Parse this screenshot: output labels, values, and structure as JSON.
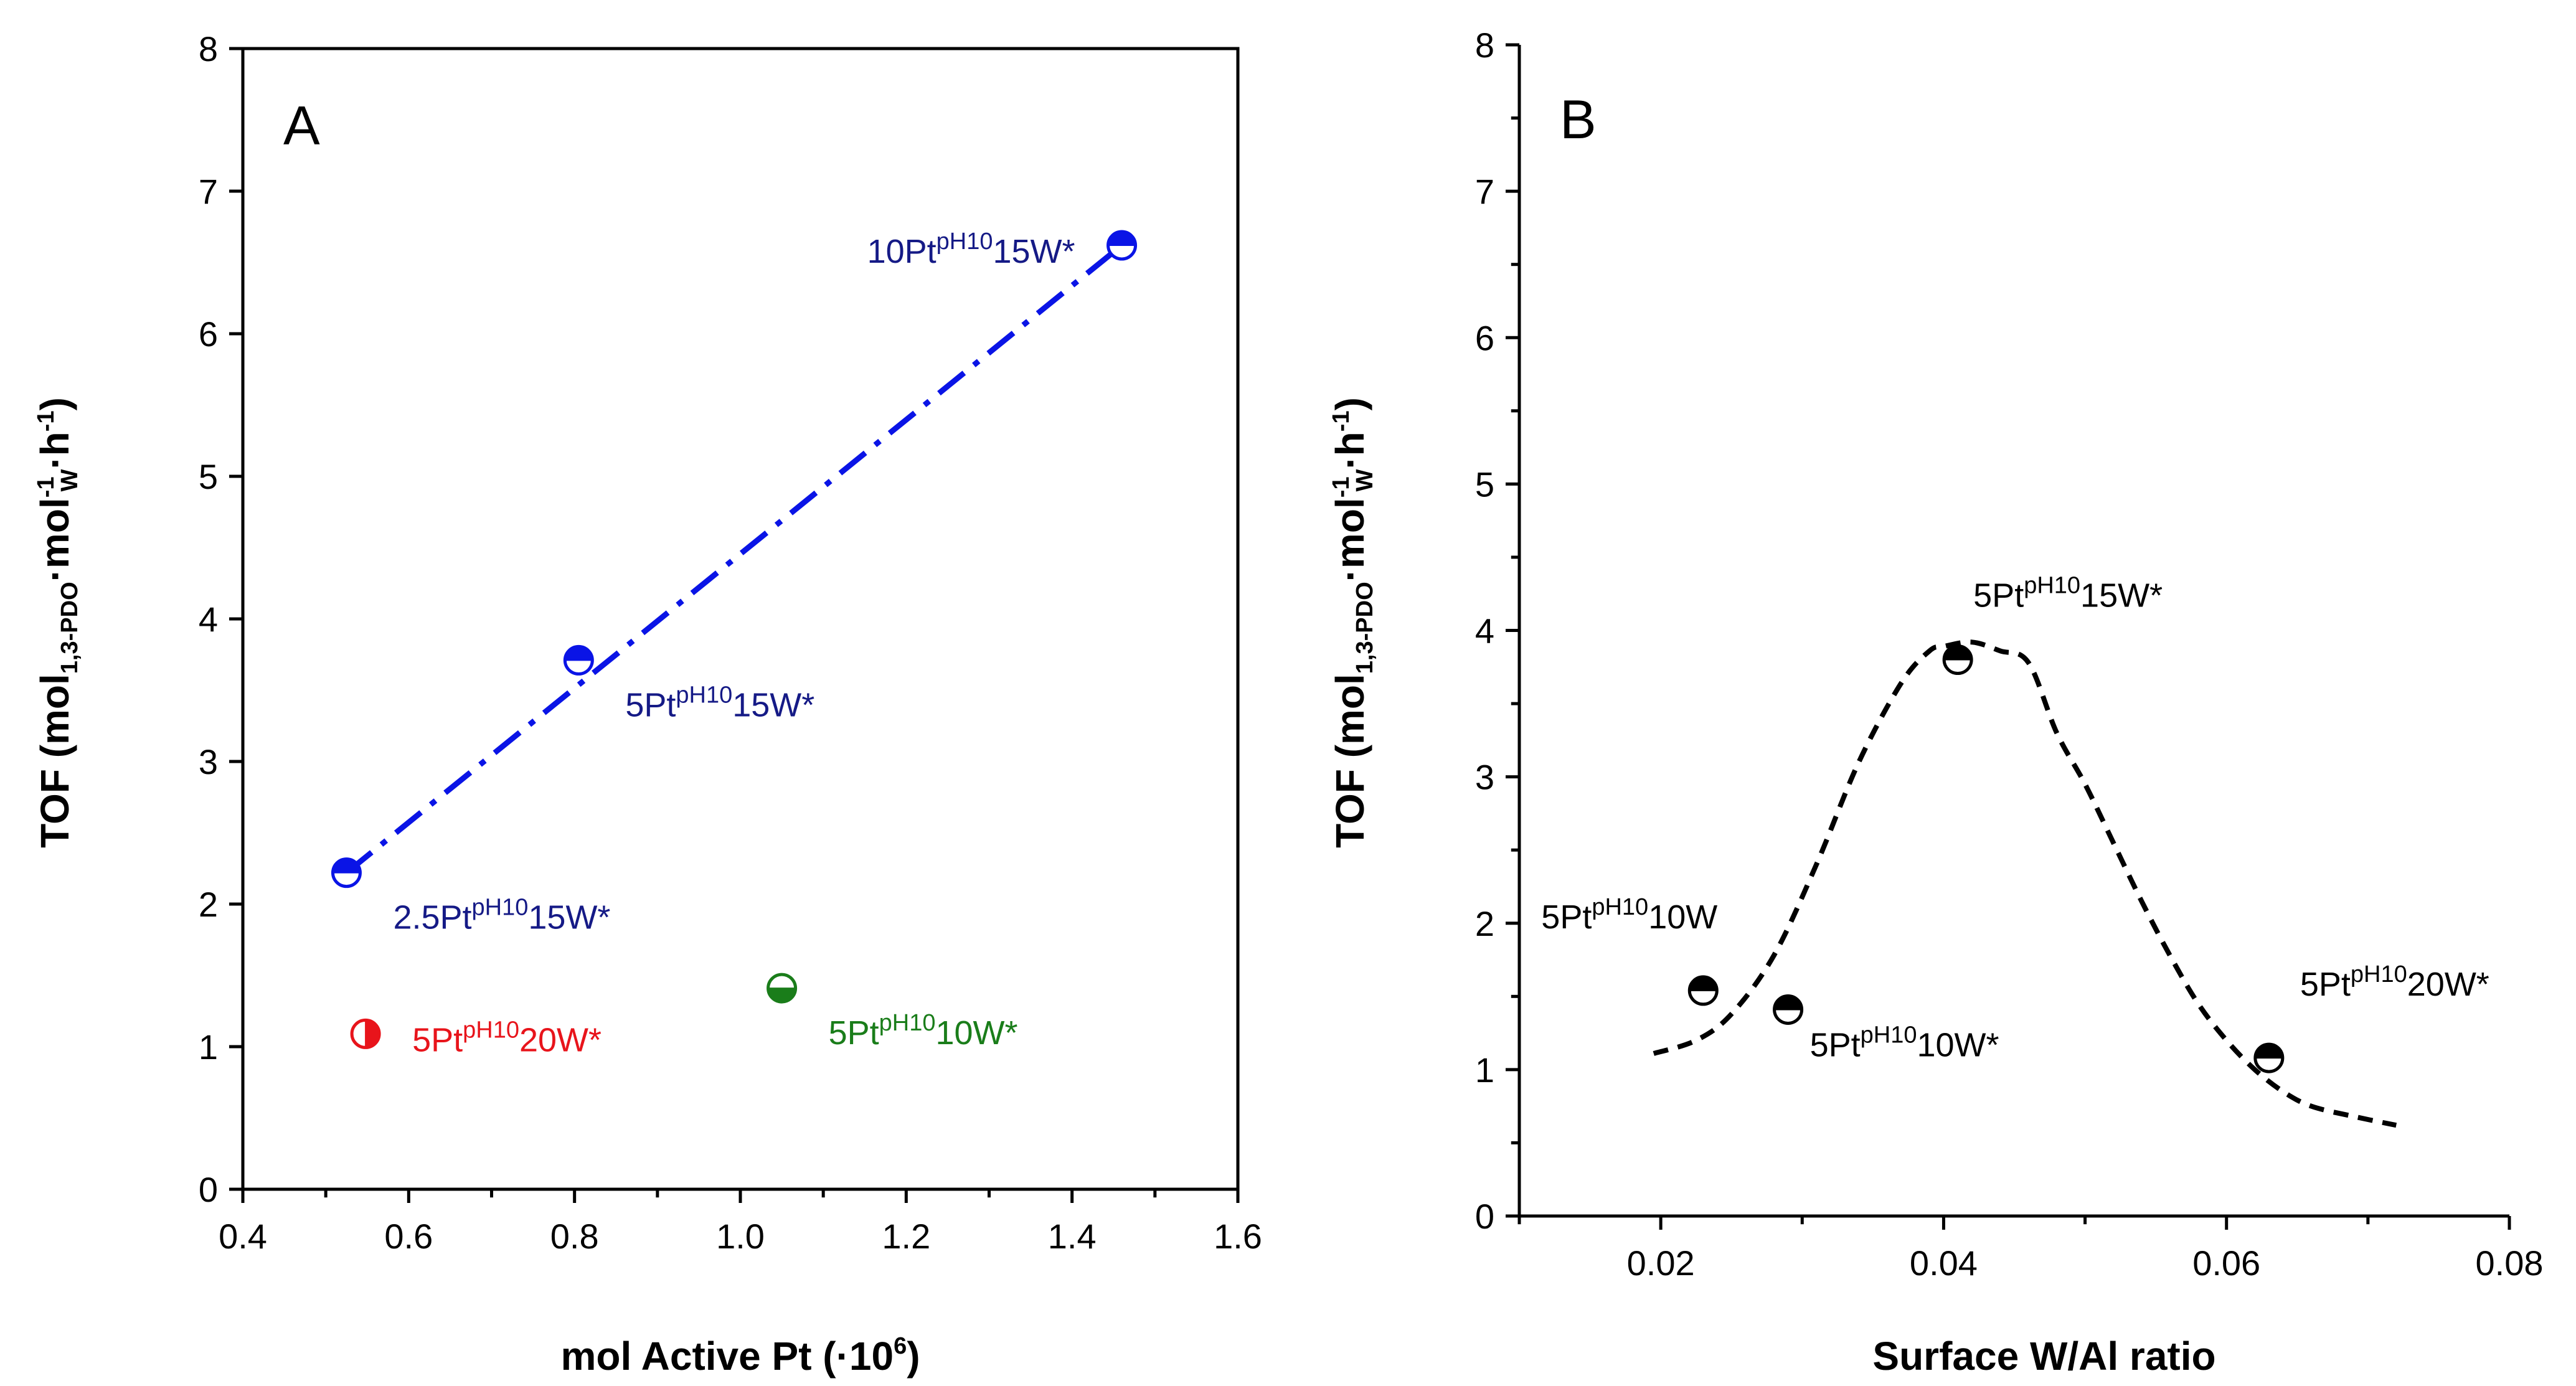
{
  "chart_data": [
    {
      "panel": "A",
      "type": "scatter",
      "xlabel": "mol Active Pt (·10",
      "xlabel_sup": "6",
      "xlabel_end": ")",
      "ylabel": "TOF (mol1,3-PDO·molW-1·h-1)",
      "xlim": [
        0.4,
        1.6
      ],
      "ylim": [
        0,
        8
      ],
      "xticks": [
        "0.4",
        "0.6",
        "0.8",
        "1.0",
        "1.2",
        "1.4",
        "1.6"
      ],
      "yticks": [
        "0",
        "1",
        "2",
        "3",
        "4",
        "5",
        "6",
        "7",
        "8"
      ],
      "fit_line": {
        "style": "dash-dot",
        "color": "#0a14e6",
        "x": [
          0.525,
          1.46
        ],
        "y": [
          2.22,
          6.62
        ]
      },
      "series": [
        {
          "name": "2.5PtpH1015W*",
          "prefix": "2.5Pt",
          "sup": "pH10",
          "suffix": "15W*",
          "x": 0.525,
          "y": 2.22,
          "color": "#0a14e6",
          "label_color": "#151a86",
          "fill": "top",
          "label_pos": "below-right"
        },
        {
          "name": "5PtpH1015W*",
          "prefix": "5Pt",
          "sup": "pH10",
          "suffix": "15W*",
          "x": 0.805,
          "y": 3.71,
          "color": "#0a14e6",
          "label_color": "#151a86",
          "fill": "top",
          "label_pos": "below-right"
        },
        {
          "name": "10PtpH1015W*",
          "prefix": "10Pt",
          "sup": "pH10",
          "suffix": "15W*",
          "x": 1.46,
          "y": 6.62,
          "color": "#0a14e6",
          "label_color": "#151a86",
          "fill": "top",
          "label_pos": "left"
        },
        {
          "name": "5PtpH1020W*",
          "prefix": "5Pt",
          "sup": "pH10",
          "suffix": "20W*",
          "x": 0.548,
          "y": 1.09,
          "color": "#e8141b",
          "label_color": "#e8141b",
          "fill": "right",
          "label_pos": "right"
        },
        {
          "name": "5PtpH1010W*",
          "prefix": "5Pt",
          "sup": "pH10",
          "suffix": "10W*",
          "x": 1.05,
          "y": 1.41,
          "color": "#1a7d1a",
          "label_color": "#1a7d1a",
          "fill": "bottom",
          "label_pos": "below-right"
        }
      ]
    },
    {
      "panel": "B",
      "type": "scatter",
      "xlabel": "Surface W/Al ratio",
      "ylabel": "TOF (mol1,3-PDO·molW-1·h-1)",
      "xlim": [
        0.01,
        0.08
      ],
      "ylim": [
        0,
        8
      ],
      "xticks": [
        "0.02",
        "0.04",
        "0.06",
        "0.08"
      ],
      "yticks": [
        "0",
        "1",
        "2",
        "3",
        "4",
        "5",
        "6",
        "7",
        "8"
      ],
      "trend_curve": {
        "style": "dashed",
        "color": "#000000",
        "x": [
          0.0195,
          0.0225,
          0.025,
          0.028,
          0.031,
          0.034,
          0.037,
          0.039,
          0.04,
          0.042,
          0.044,
          0.046,
          0.048,
          0.05,
          0.052,
          0.054,
          0.056,
          0.058,
          0.06,
          0.062,
          0.064,
          0.066,
          0.069,
          0.072
        ],
        "y": [
          1.11,
          1.2,
          1.38,
          1.78,
          2.4,
          3.1,
          3.64,
          3.86,
          3.89,
          3.92,
          3.86,
          3.78,
          3.3,
          2.95,
          2.55,
          2.15,
          1.78,
          1.45,
          1.2,
          1.0,
          0.85,
          0.75,
          0.68,
          0.62
        ]
      },
      "series": [
        {
          "name": "5PtpH1010W",
          "prefix": "5Pt",
          "sup": "pH10",
          "suffix": "10W",
          "x": 0.023,
          "y": 1.54,
          "color": "#000000",
          "label_color": "#000000",
          "fill": "top",
          "label_pos": "above-left"
        },
        {
          "name": "5PtpH1010W*",
          "prefix": "5Pt",
          "sup": "pH10",
          "suffix": "10W*",
          "x": 0.029,
          "y": 1.41,
          "color": "#000000",
          "label_color": "#000000",
          "fill": "top",
          "label_pos": "below-right"
        },
        {
          "name": "5PtpH1015W*",
          "prefix": "5Pt",
          "sup": "pH10",
          "suffix": "15W*",
          "x": 0.041,
          "y": 3.8,
          "color": "#000000",
          "label_color": "#000000",
          "fill": "top",
          "label_pos": "above-right"
        },
        {
          "name": "5PtpH1020W*",
          "prefix": "5Pt",
          "sup": "pH10",
          "suffix": "20W*",
          "x": 0.063,
          "y": 1.08,
          "color": "#000000",
          "label_color": "#000000",
          "fill": "top",
          "label_pos": "above-right"
        }
      ]
    }
  ]
}
